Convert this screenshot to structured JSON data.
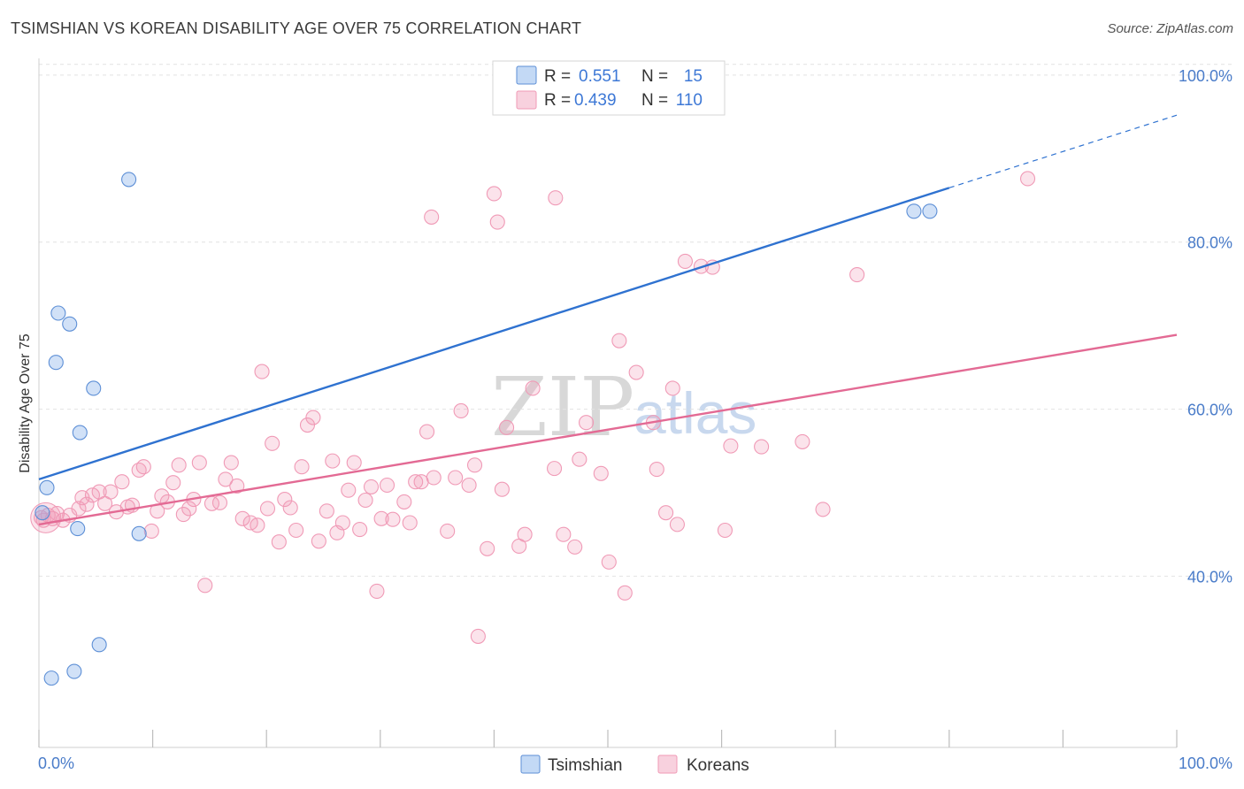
{
  "header": {
    "title": "TSIMSHIAN VS KOREAN DISABILITY AGE OVER 75 CORRELATION CHART",
    "source": "Source: ZipAtlas.com"
  },
  "legend": {
    "r_label": "R =",
    "n_label": "N =",
    "tsimshian": {
      "r": "0.551",
      "n": "15"
    },
    "koreans": {
      "r": "0.439",
      "n": "110"
    }
  },
  "bottom_legend": {
    "tsimshian": "Tsimshian",
    "koreans": "Koreans"
  },
  "watermark": {
    "zip": "ZIP",
    "atlas": "atlas"
  },
  "chart_data": {
    "type": "scatter",
    "title": "TSIMSHIAN VS KOREAN DISABILITY AGE OVER 75 CORRELATION CHART",
    "xlabel": "",
    "ylabel": "Disability Age Over 75",
    "xlim": [
      0,
      100
    ],
    "ylim": [
      19.5,
      102
    ],
    "x_tick_labels": [
      "0.0%",
      "100.0%"
    ],
    "y_ticks": [
      40,
      60,
      80,
      100
    ],
    "y_tick_labels": [
      "40.0%",
      "60.0%",
      "80.0%",
      "100.0%"
    ],
    "colors": {
      "tsimshian": "#7aaae8",
      "koreans": "#f09ab6",
      "tsimshian_line": "#2f72d0",
      "koreans_line": "#e36a94"
    },
    "series": [
      {
        "name": "Tsimshian",
        "R": 0.551,
        "N": 15,
        "trend": {
          "x0": 0,
          "y0": 51.6,
          "x1": 80,
          "y1": 86.5,
          "dash_to_x": 100,
          "dash_to_y": 95.2
        },
        "points": [
          [
            0.3,
            47.6
          ],
          [
            0.7,
            50.6
          ],
          [
            1.1,
            27.8
          ],
          [
            1.5,
            65.6
          ],
          [
            1.7,
            71.5
          ],
          [
            2.7,
            70.2
          ],
          [
            3.1,
            28.6
          ],
          [
            3.4,
            45.7
          ],
          [
            3.6,
            57.2
          ],
          [
            4.8,
            62.5
          ],
          [
            5.3,
            31.8
          ],
          [
            7.9,
            87.5
          ],
          [
            8.8,
            45.1
          ],
          [
            76.9,
            83.7
          ],
          [
            78.3,
            83.7
          ]
        ]
      },
      {
        "name": "Koreans",
        "R": 0.439,
        "N": 110,
        "trend": {
          "x0": 0,
          "y0": 46.2,
          "x1": 100,
          "y1": 68.9
        },
        "points": [
          [
            0.2,
            47.0
          ],
          [
            0.4,
            46.7
          ],
          [
            0.8,
            47.3
          ],
          [
            1.2,
            46.9
          ],
          [
            1.6,
            47.5
          ],
          [
            2.1,
            46.7
          ],
          [
            2.7,
            47.3
          ],
          [
            3.5,
            48.1
          ],
          [
            3.8,
            49.4
          ],
          [
            4.2,
            48.6
          ],
          [
            4.7,
            49.7
          ],
          [
            5.3,
            50.1
          ],
          [
            5.8,
            48.7
          ],
          [
            6.3,
            50.1
          ],
          [
            6.8,
            47.7
          ],
          [
            7.3,
            51.3
          ],
          [
            7.8,
            48.3
          ],
          [
            8.2,
            48.5
          ],
          [
            8.8,
            52.7
          ],
          [
            9.2,
            53.1
          ],
          [
            9.9,
            45.4
          ],
          [
            10.4,
            47.8
          ],
          [
            10.8,
            49.6
          ],
          [
            11.3,
            48.9
          ],
          [
            11.8,
            51.2
          ],
          [
            12.3,
            53.3
          ],
          [
            12.7,
            47.4
          ],
          [
            13.2,
            48.1
          ],
          [
            13.6,
            49.2
          ],
          [
            14.1,
            53.6
          ],
          [
            14.6,
            38.9
          ],
          [
            15.2,
            48.7
          ],
          [
            15.9,
            48.8
          ],
          [
            16.4,
            51.6
          ],
          [
            16.9,
            53.6
          ],
          [
            17.4,
            50.8
          ],
          [
            17.9,
            46.9
          ],
          [
            18.6,
            46.4
          ],
          [
            19.2,
            46.1
          ],
          [
            19.6,
            64.5
          ],
          [
            20.1,
            48.1
          ],
          [
            20.5,
            55.9
          ],
          [
            21.1,
            44.1
          ],
          [
            21.6,
            49.2
          ],
          [
            22.1,
            48.2
          ],
          [
            22.6,
            45.5
          ],
          [
            23.1,
            53.1
          ],
          [
            23.6,
            58.1
          ],
          [
            24.1,
            59.0
          ],
          [
            24.6,
            44.2
          ],
          [
            25.3,
            47.8
          ],
          [
            25.8,
            53.8
          ],
          [
            26.2,
            45.2
          ],
          [
            26.7,
            46.4
          ],
          [
            27.2,
            50.3
          ],
          [
            27.7,
            53.6
          ],
          [
            28.2,
            45.6
          ],
          [
            28.7,
            49.1
          ],
          [
            29.2,
            50.7
          ],
          [
            29.7,
            38.2
          ],
          [
            30.1,
            46.9
          ],
          [
            30.6,
            50.9
          ],
          [
            31.1,
            46.8
          ],
          [
            32.1,
            48.9
          ],
          [
            32.6,
            46.4
          ],
          [
            33.1,
            51.3
          ],
          [
            33.6,
            51.3
          ],
          [
            34.1,
            57.3
          ],
          [
            34.5,
            83.0
          ],
          [
            34.7,
            51.8
          ],
          [
            35.9,
            45.4
          ],
          [
            36.6,
            51.8
          ],
          [
            37.1,
            59.8
          ],
          [
            37.8,
            50.9
          ],
          [
            38.3,
            53.3
          ],
          [
            38.6,
            32.8
          ],
          [
            39.4,
            43.3
          ],
          [
            40.0,
            85.8
          ],
          [
            40.3,
            82.4
          ],
          [
            40.7,
            50.4
          ],
          [
            42.2,
            43.6
          ],
          [
            42.7,
            45.0
          ],
          [
            43.4,
            62.5
          ],
          [
            45.4,
            85.3
          ],
          [
            46.1,
            45.0
          ],
          [
            47.1,
            43.5
          ],
          [
            47.5,
            54.0
          ],
          [
            48.1,
            58.4
          ],
          [
            49.4,
            52.3
          ],
          [
            50.1,
            41.7
          ],
          [
            51.0,
            68.2
          ],
          [
            51.5,
            38.0
          ],
          [
            52.5,
            64.4
          ],
          [
            54.0,
            58.4
          ],
          [
            54.3,
            52.8
          ],
          [
            55.1,
            47.6
          ],
          [
            55.7,
            62.5
          ],
          [
            56.1,
            46.2
          ],
          [
            56.8,
            77.7
          ],
          [
            58.2,
            77.1
          ],
          [
            59.2,
            77.0
          ],
          [
            60.3,
            45.5
          ],
          [
            60.8,
            55.6
          ],
          [
            63.5,
            55.5
          ],
          [
            67.1,
            56.1
          ],
          [
            68.9,
            48.0
          ],
          [
            71.9,
            76.1
          ],
          [
            86.9,
            87.6
          ],
          [
            45.3,
            52.9
          ],
          [
            41.1,
            57.8
          ]
        ]
      }
    ]
  }
}
